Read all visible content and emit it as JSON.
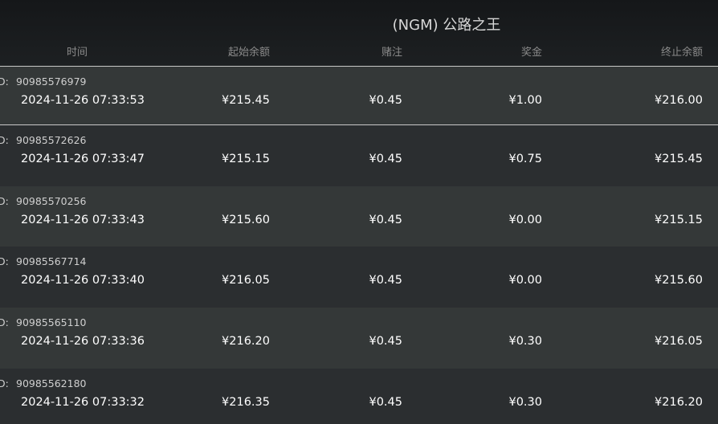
{
  "header": {
    "title": "(NGM) 公路之王",
    "columns": [
      "时间",
      "起始余额",
      "赌注",
      "奖金",
      "终止余额"
    ]
  },
  "table": {
    "id_label": "D:",
    "rows": [
      {
        "id": "90985576979",
        "cells": [
          "2024-11-26 07:33:53",
          "¥215.45",
          "¥0.45",
          "¥1.00",
          "¥216.00"
        ]
      },
      {
        "id": "90985572626",
        "cells": [
          "2024-11-26 07:33:47",
          "¥215.15",
          "¥0.45",
          "¥0.75",
          "¥215.45"
        ]
      },
      {
        "id": "90985570256",
        "cells": [
          "2024-11-26 07:33:43",
          "¥215.60",
          "¥0.45",
          "¥0.00",
          "¥215.15"
        ]
      },
      {
        "id": "90985567714",
        "cells": [
          "2024-11-26 07:33:40",
          "¥216.05",
          "¥0.45",
          "¥0.00",
          "¥215.60"
        ]
      },
      {
        "id": "90985565110",
        "cells": [
          "2024-11-26 07:33:36",
          "¥216.20",
          "¥0.45",
          "¥0.30",
          "¥216.05"
        ]
      },
      {
        "id": "90985562180",
        "cells": [
          "2024-11-26 07:33:32",
          "¥216.35",
          "¥0.45",
          "¥0.30",
          "¥216.20"
        ]
      }
    ]
  }
}
